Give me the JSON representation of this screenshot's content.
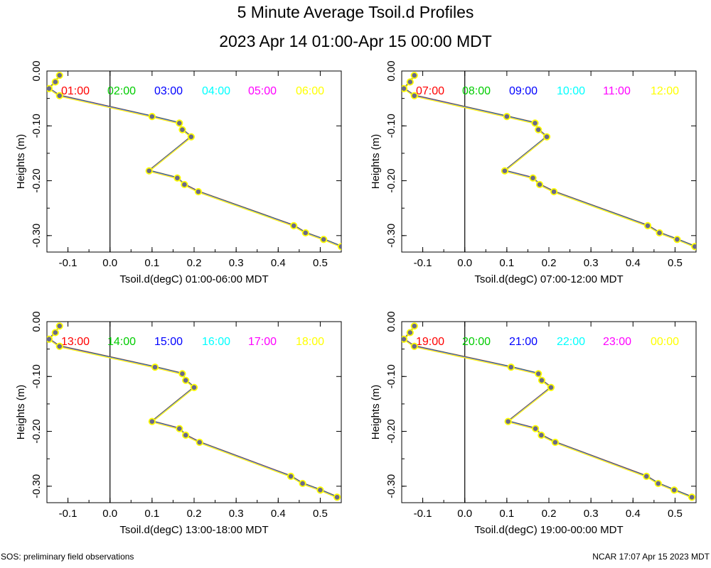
{
  "title": "5 Minute Average Tsoil.d Profiles",
  "subtitle": "2023 Apr 14 01:00-Apr 15 00:00 MDT",
  "footer": {
    "left": "SOS: preliminary field observations",
    "right": "NCAR 17:07 Apr 15 2023 MDT"
  },
  "colors": {
    "series": [
      "#ff0000",
      "#00cc00",
      "#0000ff",
      "#00ffff",
      "#ff00ff",
      "#ffff00"
    ],
    "axis": "#000000",
    "marker_stroke": "#555555"
  },
  "chart_data": [
    {
      "type": "line",
      "xlabel": "Tsoil.d(degC) 01:00-06:00 MDT",
      "ylabel": "Heights (m)",
      "xlim": [
        -0.15,
        0.55
      ],
      "ylim": [
        -0.33,
        0.0
      ],
      "xticks": [
        "-0.1",
        "0.0",
        "0.1",
        "0.2",
        "0.3",
        "0.4",
        "0.5"
      ],
      "yticks": [
        "0.00",
        "-0.10",
        "-0.20",
        "-0.30"
      ],
      "legend": [
        "01:00",
        "02:00",
        "03:00",
        "04:00",
        "05:00",
        "06:00"
      ],
      "profile": {
        "x": [
          -0.12,
          -0.13,
          -0.145,
          -0.12,
          0.1,
          0.165,
          0.172,
          0.193,
          0.093,
          0.16,
          0.177,
          0.21,
          0.437,
          0.465,
          0.508,
          0.55
        ],
        "y": [
          -0.008,
          -0.02,
          -0.032,
          -0.045,
          -0.083,
          -0.095,
          -0.107,
          -0.12,
          -0.182,
          -0.195,
          -0.207,
          -0.22,
          -0.282,
          -0.295,
          -0.307,
          -0.32
        ]
      }
    },
    {
      "type": "line",
      "xlabel": "Tsoil.d(degC) 07:00-12:00 MDT",
      "ylabel": "Heights (m)",
      "xlim": [
        -0.15,
        0.55
      ],
      "ylim": [
        -0.33,
        0.0
      ],
      "xticks": [
        "-0.1",
        "0.0",
        "0.1",
        "0.2",
        "0.3",
        "0.4",
        "0.5"
      ],
      "yticks": [
        "0.00",
        "-0.10",
        "-0.20",
        "-0.30"
      ],
      "legend": [
        "07:00",
        "08:00",
        "09:00",
        "10:00",
        "11:00",
        "12:00"
      ],
      "profile": {
        "x": [
          -0.12,
          -0.13,
          -0.145,
          -0.12,
          0.1,
          0.167,
          0.175,
          0.195,
          0.095,
          0.162,
          0.178,
          0.212,
          0.435,
          0.463,
          0.505,
          0.547
        ],
        "y": [
          -0.008,
          -0.02,
          -0.032,
          -0.045,
          -0.083,
          -0.095,
          -0.107,
          -0.12,
          -0.182,
          -0.195,
          -0.207,
          -0.22,
          -0.282,
          -0.295,
          -0.307,
          -0.32
        ]
      }
    },
    {
      "type": "line",
      "xlabel": "Tsoil.d(degC) 13:00-18:00 MDT",
      "ylabel": "Heights (m)",
      "xlim": [
        -0.15,
        0.55
      ],
      "ylim": [
        -0.33,
        0.0
      ],
      "xticks": [
        "-0.1",
        "0.0",
        "0.1",
        "0.2",
        "0.3",
        "0.4",
        "0.5"
      ],
      "yticks": [
        "0.00",
        "-0.10",
        "-0.20",
        "-0.30"
      ],
      "legend": [
        "13:00",
        "14:00",
        "15:00",
        "16:00",
        "17:00",
        "18:00"
      ],
      "profile": {
        "x": [
          -0.12,
          -0.13,
          -0.145,
          -0.12,
          0.107,
          0.172,
          0.18,
          0.2,
          0.1,
          0.165,
          0.18,
          0.213,
          0.43,
          0.458,
          0.5,
          0.54
        ],
        "y": [
          -0.008,
          -0.02,
          -0.032,
          -0.045,
          -0.083,
          -0.095,
          -0.107,
          -0.12,
          -0.182,
          -0.195,
          -0.207,
          -0.22,
          -0.282,
          -0.295,
          -0.307,
          -0.32
        ]
      }
    },
    {
      "type": "line",
      "xlabel": "Tsoil.d(degC) 19:00-00:00 MDT",
      "ylabel": "Heights (m)",
      "xlim": [
        -0.15,
        0.55
      ],
      "ylim": [
        -0.33,
        0.0
      ],
      "xticks": [
        "-0.1",
        "0.0",
        "0.1",
        "0.2",
        "0.3",
        "0.4",
        "0.5"
      ],
      "yticks": [
        "0.00",
        "-0.10",
        "-0.20",
        "-0.30"
      ],
      "legend": [
        "19:00",
        "20:00",
        "21:00",
        "22:00",
        "23:00",
        "00:00"
      ],
      "profile": {
        "x": [
          -0.12,
          -0.13,
          -0.145,
          -0.12,
          0.11,
          0.175,
          0.183,
          0.205,
          0.103,
          0.168,
          0.182,
          0.215,
          0.432,
          0.46,
          0.498,
          0.54
        ],
        "y": [
          -0.008,
          -0.02,
          -0.032,
          -0.045,
          -0.083,
          -0.095,
          -0.107,
          -0.12,
          -0.182,
          -0.195,
          -0.207,
          -0.22,
          -0.282,
          -0.295,
          -0.307,
          -0.32
        ]
      }
    }
  ]
}
